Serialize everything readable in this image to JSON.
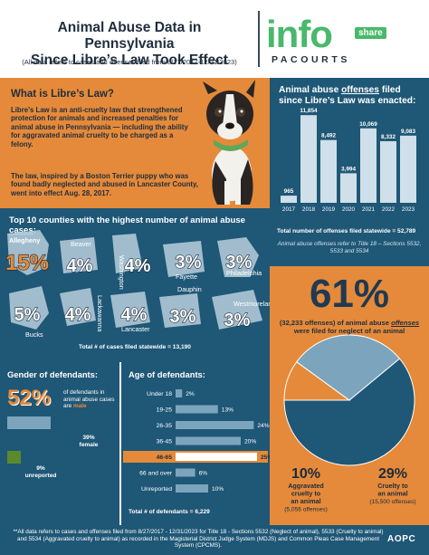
{
  "header": {
    "title_line1": "Animal Abuse Data in Pennsylvania",
    "title_line2": "Since Libre’s Law Took Effect",
    "subtitle": "(All data refers to cases and offenses filed from 8/27/2017-12/31/2023)",
    "logo_info": "info",
    "logo_share": "share",
    "logo_pacourts": "PACOURTS"
  },
  "libre": {
    "heading": "What is Libre’s Law?",
    "paragraph1": "Libre’s Law is an anti-cruelty law that strengthened protection for animals and increased penalties for animal abuse in Pennsylvania — including the ability for aggravated animal cruelty to be charged as a felony.",
    "paragraph2": "The law, inspired by a Boston Terrier puppy who was found badly neglected and abused in Lancaster County, went into effect Aug. 28, 2017."
  },
  "offenses": {
    "heading_pre": "Animal abuse ",
    "heading_ul": "offenses",
    "heading_post": " filed since Libre’s Law was enacted:",
    "total": "Total number of offenses filed statewide = 52,789",
    "note": "Animal abuse offenses refer to Title 18 – Sections 5532, 5533 and 5534"
  },
  "counties": {
    "heading_pre": "Top 10 counties with the highest number of animal abuse ",
    "heading_ul": "cases",
    "heading_post": ":",
    "total": "Total # of cases filed statewide = 13,190"
  },
  "neglect": {
    "percent": "61%",
    "text_pre": "(32,233 offenses) of animal abuse ",
    "text_ul": "offenses",
    "text_post": " were filed for neglect of an animal"
  },
  "gender": {
    "heading": "Gender of defendants:",
    "male_percent": "52%",
    "male_text_pre": "of defendants in animal abuse cases are ",
    "male_text_b": "male",
    "female_label": "39%\nfemale",
    "female_percent": "39%",
    "female_text": "female",
    "unreported_percent": "9%",
    "unreported_text": "unreported"
  },
  "age": {
    "heading": "Age of defendants:",
    "total": "Total # of defendants = 6,229"
  },
  "footer": {
    "note": "**All data refers to cases and offenses filed from 8/27/2017 - 12/31/2023 for Title 18 - Sections 5532 (Neglect of animal), 5533 (Cruelty to animal) and 5534 (Aggravated cruelty to animal) as recorded in the Magisterial District Judge System (MDJS) and Common Pleas Case Management System (CPCMS).",
    "brand": "AOPC"
  },
  "chart_data": [
    {
      "type": "bar",
      "categories": [
        "2017",
        "2018",
        "2019",
        "2020",
        "2021",
        "2022",
        "2023"
      ],
      "values": [
        965,
        11854,
        8492,
        3994,
        10069,
        8332,
        9083
      ],
      "value_labels": [
        "965",
        "11,854",
        "8,492",
        "3,994",
        "10,069",
        "8,332",
        "9,083"
      ],
      "ylim": [
        0,
        12000
      ],
      "colors": {
        "bar": "#cfe0ea",
        "background": "#1f5776"
      }
    },
    {
      "type": "table",
      "counties": [
        {
          "name": "Allegheny",
          "percent": "15%"
        },
        {
          "name": "Beaver",
          "percent": "4%"
        },
        {
          "name": "Washington",
          "percent": "4%"
        },
        {
          "name": "Fayette",
          "percent": "3%"
        },
        {
          "name": "Philadelphia",
          "percent": "3%"
        },
        {
          "name": "Bucks",
          "percent": "5%"
        },
        {
          "name": "Lackawanna",
          "percent": "4%"
        },
        {
          "name": "Lancaster",
          "percent": "4%"
        },
        {
          "name": "Dauphin",
          "percent": "3%"
        },
        {
          "name": "Westmoreland",
          "percent": "3%"
        }
      ]
    },
    {
      "type": "pie",
      "slices": [
        {
          "label": "Neglect",
          "value": 61,
          "color": "#1f5776"
        },
        {
          "label": "Aggravated cruelty to an animal",
          "value": 10,
          "offenses": "(5,056 offenses)",
          "color": "#e58a3a"
        },
        {
          "label": "Cruelty to an animal",
          "value": 29,
          "offenses": "(15,500 offenses)",
          "color": "#7ca5bd"
        }
      ],
      "labels": [
        {
          "percent": "10%",
          "text": "Aggravated cruelty to an animal",
          "sub": "(5,056 offenses)"
        },
        {
          "percent": "29%",
          "text": "Cruelty to an animal",
          "sub": "(15,500 offenses)"
        }
      ]
    },
    {
      "type": "bar",
      "orientation": "horizontal",
      "categories": [
        "Under 18",
        "19-25",
        "26-35",
        "36-45",
        "46-65",
        "66 and over",
        "Unreported"
      ],
      "values": [
        2,
        13,
        24,
        20,
        25,
        6,
        10
      ],
      "value_labels": [
        "2%",
        "13%",
        "24%",
        "20%",
        "25%",
        "6%",
        "10%"
      ],
      "highlight": "46-65",
      "xlim": [
        0,
        25
      ],
      "colors": {
        "bar": "#7ca5bd",
        "highlight": "#e58a3a"
      }
    },
    {
      "type": "bar",
      "orientation": "horizontal",
      "categories": [
        "male",
        "female",
        "unreported"
      ],
      "values": [
        52,
        39,
        9
      ],
      "colors": {
        "male": "#e58a3a",
        "female": "#7ca5bd",
        "unreported": "#5b8a2d"
      }
    }
  ]
}
